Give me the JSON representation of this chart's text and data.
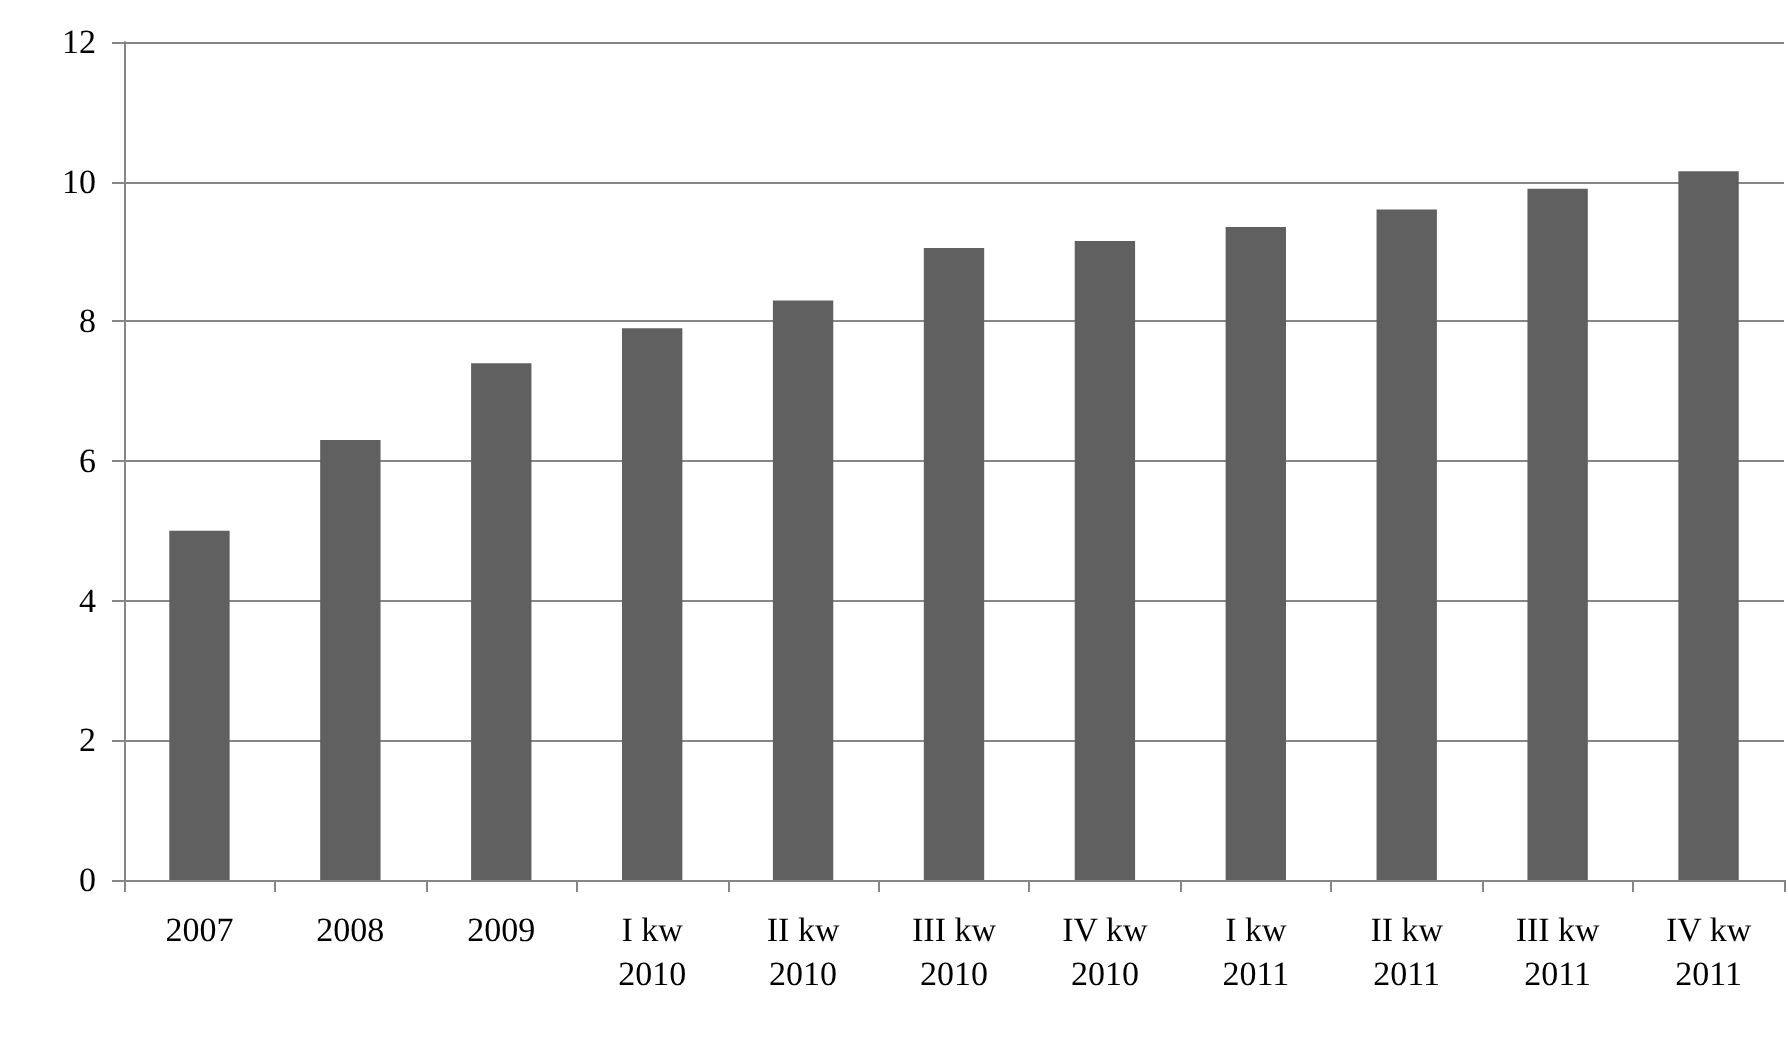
{
  "chart_data": {
    "type": "bar",
    "categories": [
      "2007",
      "2008",
      "2009",
      "I kw\n2010",
      "II kw\n2010",
      "III kw\n2010",
      "IV kw\n2010",
      "I kw\n2011",
      "II kw\n2011",
      "III kw\n2011",
      "IV kw\n2011"
    ],
    "values": [
      5.0,
      6.3,
      7.4,
      7.9,
      8.3,
      9.05,
      9.15,
      9.35,
      9.6,
      9.9,
      10.15
    ],
    "color": "#606060",
    "ylim": [
      0,
      12
    ],
    "yticks": [
      0,
      2,
      4,
      6,
      8,
      10,
      12
    ],
    "grid": "y"
  }
}
